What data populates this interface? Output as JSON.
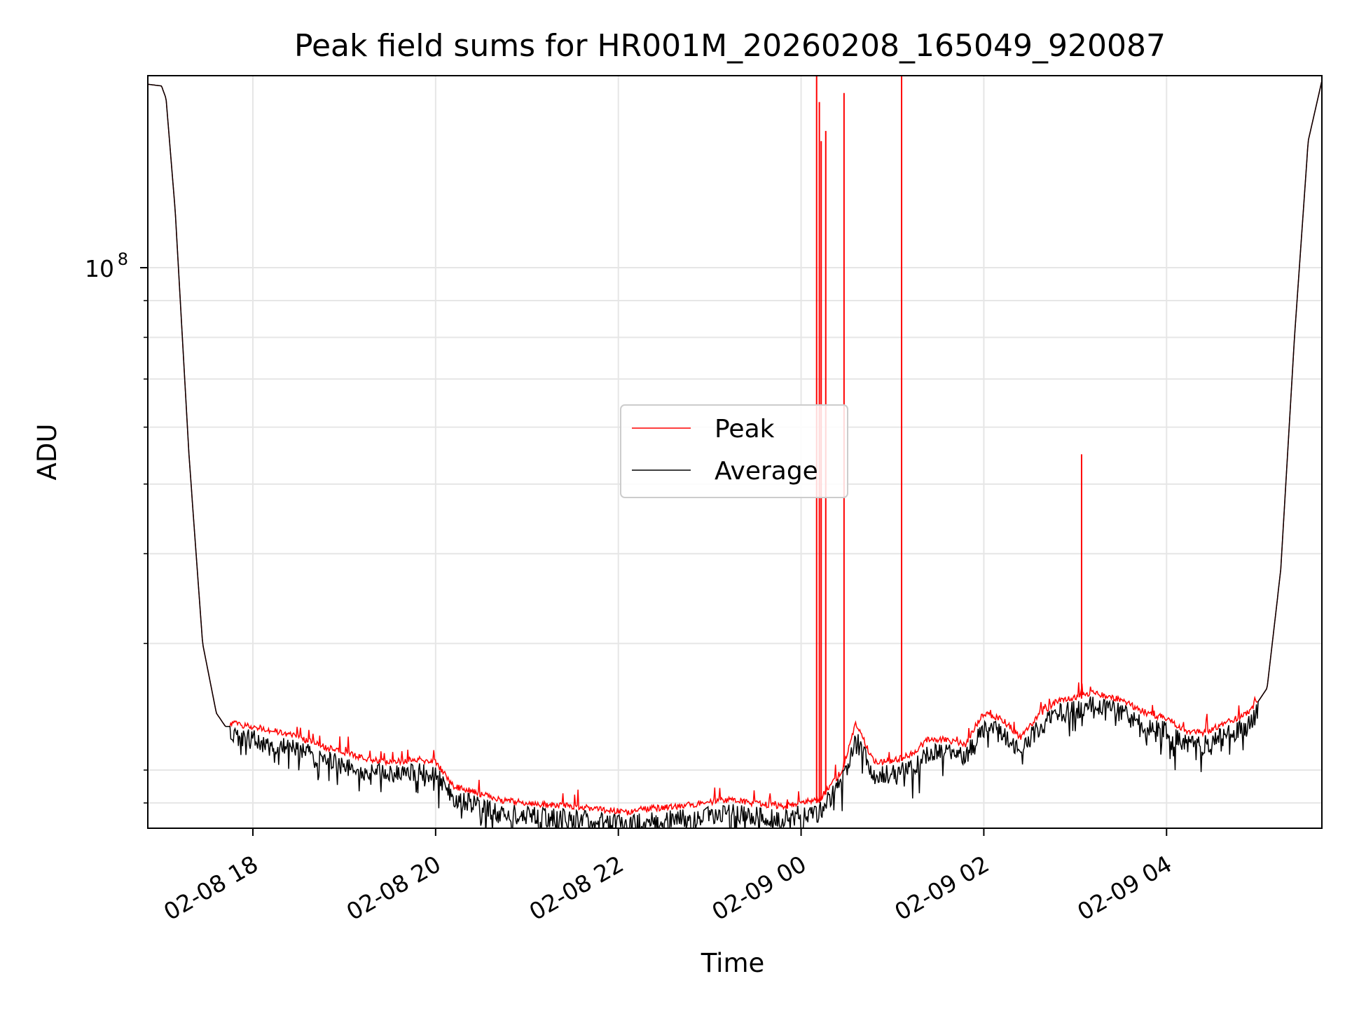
{
  "chart_data": {
    "type": "line",
    "title": "Peak field sums for HR001M_20260208_165049_920087",
    "xlabel": "Time",
    "ylabel": "ADU",
    "yscale": "log",
    "ylim": [
      16600000,
      185000000
    ],
    "xlim_hours": [
      -1.15,
      11.7
    ],
    "x_unit": "hours since 2026-02-08 18:00",
    "grid": true,
    "legend_position": "center",
    "x_ticks": [
      {
        "value": 0,
        "label": "02-08 18"
      },
      {
        "value": 2,
        "label": "02-08 20"
      },
      {
        "value": 4,
        "label": "02-08 22"
      },
      {
        "value": 6,
        "label": "02-09 00"
      },
      {
        "value": 8,
        "label": "02-09 02"
      },
      {
        "value": 10,
        "label": "02-09 04"
      }
    ],
    "y_ticks": [
      {
        "value": 100000000,
        "mantissa": "10",
        "exponent": "8"
      }
    ],
    "y_minor_ticks": [
      18000000,
      20000000,
      30000000,
      40000000,
      50000000,
      60000000,
      70000000,
      80000000,
      90000000,
      200000000
    ],
    "series": [
      {
        "name": "Peak",
        "color": "#ff0000",
        "x": [
          -1.15,
          -1.0,
          -0.95,
          -0.85,
          -0.7,
          -0.55,
          -0.4,
          -0.3,
          -0.2,
          -0.05,
          0.2,
          0.5,
          0.8,
          1.2,
          1.5,
          1.8,
          2.0,
          2.2,
          2.4,
          2.7,
          3.0,
          3.3,
          3.6,
          3.9,
          4.1,
          4.3,
          4.6,
          4.9,
          5.2,
          5.5,
          5.8,
          6.0,
          6.2,
          6.45,
          6.6,
          6.8,
          7.0,
          7.2,
          7.4,
          7.6,
          7.8,
          8.0,
          8.2,
          8.4,
          8.6,
          8.8,
          9.0,
          9.2,
          9.5,
          9.8,
          10.0,
          10.2,
          10.4,
          10.6,
          10.9,
          11.1,
          11.25,
          11.4,
          11.55,
          11.7
        ],
        "values": [
          180000000,
          179000000,
          172000000,
          120000000,
          55000000,
          30000000,
          24000000,
          23000000,
          23000000,
          22800000,
          22500000,
          22000000,
          21300000,
          20600000,
          20300000,
          20500000,
          20300000,
          18800000,
          18500000,
          18000000,
          17800000,
          17700000,
          17600000,
          17400000,
          17300000,
          17500000,
          17600000,
          17800000,
          18000000,
          17800000,
          17600000,
          17900000,
          18000000,
          19800000,
          23000000,
          20300000,
          20400000,
          20800000,
          21900000,
          21800000,
          21500000,
          23800000,
          23300000,
          22000000,
          23600000,
          24700000,
          25000000,
          25400000,
          24800000,
          23700000,
          23400000,
          22500000,
          22300000,
          22900000,
          23800000,
          26000000,
          38000000,
          80000000,
          150000000,
          182000000
        ],
        "spikes": [
          {
            "x": 6.17,
            "value": 185000000
          },
          {
            "x": 6.2,
            "value": 170000000
          },
          {
            "x": 6.22,
            "value": 150000000
          },
          {
            "x": 6.27,
            "value": 155000000
          },
          {
            "x": 6.47,
            "value": 175000000
          },
          {
            "x": 7.1,
            "value": 185000000
          },
          {
            "x": 9.07,
            "value": 55000000
          },
          {
            "x": 5.85,
            "value": 18200000
          }
        ]
      },
      {
        "name": "Average",
        "color": "#000000",
        "x": [
          -1.15,
          -1.0,
          -0.95,
          -0.85,
          -0.7,
          -0.55,
          -0.4,
          -0.3,
          -0.2,
          -0.05,
          0.2,
          0.5,
          0.8,
          1.2,
          1.5,
          1.8,
          2.0,
          2.2,
          2.4,
          2.7,
          3.0,
          3.3,
          3.6,
          3.9,
          4.1,
          4.3,
          4.6,
          4.9,
          5.2,
          5.5,
          5.8,
          6.0,
          6.2,
          6.45,
          6.6,
          6.8,
          7.0,
          7.2,
          7.4,
          7.6,
          7.8,
          8.0,
          8.2,
          8.4,
          8.6,
          8.8,
          9.0,
          9.2,
          9.5,
          9.8,
          10.0,
          10.2,
          10.4,
          10.6,
          10.9,
          11.1,
          11.25,
          11.4,
          11.55,
          11.7
        ],
        "values": [
          180000000,
          179000000,
          172000000,
          120000000,
          55000000,
          30000000,
          24000000,
          23000000,
          23000000,
          22800000,
          22500000,
          22000000,
          21300000,
          20600000,
          20300000,
          20500000,
          20300000,
          18800000,
          18500000,
          18000000,
          17800000,
          17700000,
          17600000,
          17400000,
          17300000,
          17500000,
          17600000,
          17800000,
          18000000,
          17800000,
          17600000,
          17900000,
          18000000,
          19800000,
          23000000,
          20300000,
          20400000,
          20800000,
          21900000,
          21800000,
          21500000,
          23800000,
          23300000,
          22000000,
          23600000,
          24700000,
          25000000,
          25400000,
          24800000,
          23700000,
          23400000,
          22500000,
          22300000,
          22900000,
          23800000,
          26000000,
          38000000,
          80000000,
          150000000,
          182000000
        ]
      }
    ]
  }
}
